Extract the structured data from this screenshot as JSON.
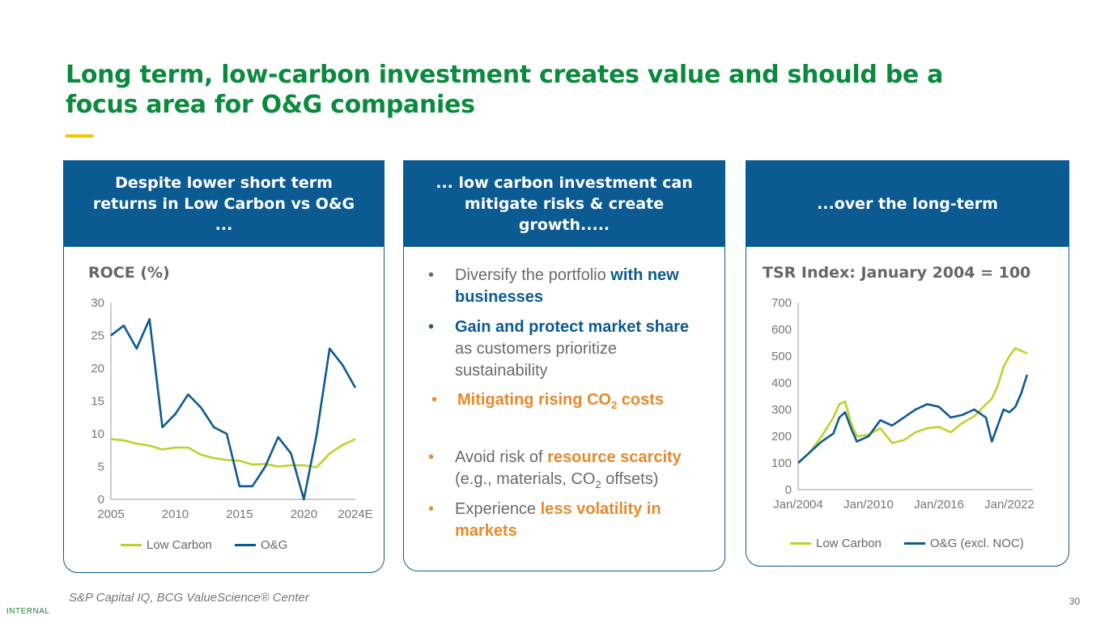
{
  "title": "Long term, low-carbon investment creates value and should be a focus area for O&G companies",
  "source": "S&P Capital IQ, BCG ValueScience® Center",
  "page_number": "30",
  "classification": "INTERNAL",
  "colors": {
    "green_title": "#0a8a3c",
    "blue": "#0c5a92",
    "lime": "#bfd22b",
    "orange": "#e8892b",
    "yellow": "#f5c400"
  },
  "panel1": {
    "header": "Despite lower short term returns in Low Carbon vs O&G ...",
    "chart_title": "ROCE (%)",
    "legend_low_carbon": "Low Carbon",
    "legend_og": "O&G"
  },
  "panel2": {
    "header": "... low carbon investment can mitigate risks & create growth.....",
    "bullet1_a": "Diversify the portfolio ",
    "bullet1_b": "with new businesses",
    "bullet2_a": "Gain and protect market share",
    "bullet2_b": " as customers prioritize sustainability",
    "bullet3_a": "Mitigating rising CO",
    "bullet3_sub": "2",
    "bullet3_b": " costs",
    "bullet4_a": "Avoid risk of ",
    "bullet4_b": "resource scarcity",
    "bullet4_c": " (e.g., materials, CO",
    "bullet4_sub": "2",
    "bullet4_d": " offsets)",
    "bullet5_a": "Experience ",
    "bullet5_b": "less volatility in markets"
  },
  "panel3": {
    "header": "...over the long-term",
    "chart_title": "TSR Index: January 2004 = 100",
    "legend_low_carbon": "Low Carbon",
    "legend_og": "O&G (excl. NOC)"
  },
  "chart_data": [
    {
      "type": "line",
      "title": "ROCE (%)",
      "ylim": [
        0,
        30
      ],
      "yticks": [
        "0",
        "5",
        "10",
        "15",
        "20",
        "25",
        "30"
      ],
      "xlim": [
        2005,
        2024
      ],
      "xticks": [
        "2005",
        "2010",
        "2015",
        "2020",
        "2024E"
      ],
      "xtick_values": [
        2005,
        2010,
        2015,
        2020,
        2024
      ],
      "x": [
        2005,
        2006,
        2007,
        2008,
        2009,
        2010,
        2011,
        2012,
        2013,
        2014,
        2015,
        2016,
        2017,
        2018,
        2019,
        2020,
        2021,
        2022,
        2023,
        2024
      ],
      "series": [
        {
          "name": "Low Carbon",
          "color": "#bfd22b",
          "values": [
            9.2,
            9.0,
            8.5,
            8.2,
            7.6,
            7.9,
            7.9,
            6.8,
            6.3,
            6.0,
            5.9,
            5.3,
            5.4,
            5.0,
            5.2,
            5.2,
            4.9,
            7.0,
            8.3,
            9.2
          ]
        },
        {
          "name": "O&G",
          "color": "#0c5a92",
          "values": [
            25,
            26.5,
            23,
            27.5,
            11,
            13,
            16,
            14,
            11,
            10,
            2,
            2,
            5,
            9.5,
            7,
            0,
            10,
            23,
            20.5,
            17
          ]
        }
      ]
    },
    {
      "type": "line",
      "title": "TSR Index: January 2004 = 100",
      "ylim": [
        0,
        700
      ],
      "yticks": [
        "0",
        "100",
        "200",
        "300",
        "400",
        "500",
        "600",
        "700"
      ],
      "xlim": [
        2004,
        2024
      ],
      "xticks": [
        "Jan/2004",
        "Jan/2010",
        "Jan/2016",
        "Jan/2022"
      ],
      "xtick_values": [
        2004,
        2010,
        2016,
        2022
      ],
      "x": [
        2004,
        2005,
        2006,
        2007,
        2007.5,
        2008,
        2008.5,
        2009,
        2010,
        2011,
        2012,
        2013,
        2014,
        2015,
        2016,
        2017,
        2018,
        2019,
        2020,
        2020.5,
        2021,
        2021.5,
        2022,
        2022.5,
        2023,
        2023.5
      ],
      "series": [
        {
          "name": "Low Carbon",
          "color": "#bfd22b",
          "values": [
            100,
            140,
            200,
            270,
            320,
            330,
            250,
            200,
            205,
            230,
            175,
            185,
            215,
            230,
            235,
            215,
            250,
            275,
            320,
            340,
            390,
            460,
            500,
            530,
            520,
            510
          ]
        },
        {
          "name": "O&G (excl. NOC)",
          "color": "#0c5a92",
          "values": [
            100,
            140,
            180,
            210,
            270,
            290,
            230,
            180,
            200,
            260,
            240,
            270,
            300,
            320,
            310,
            270,
            280,
            300,
            270,
            180,
            240,
            300,
            290,
            310,
            360,
            430
          ]
        }
      ]
    }
  ]
}
